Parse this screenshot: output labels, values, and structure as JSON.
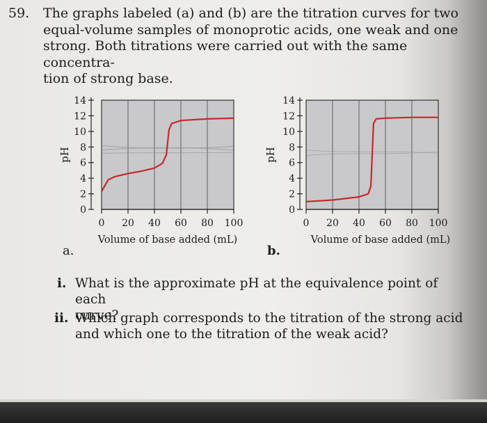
{
  "question": {
    "number": "59.",
    "lines": [
      "The graphs labeled (a) and (b) are the titration curves for two",
      "equal-volume samples of monoprotic acids, one weak and one",
      "strong. Both titrations were carried out with the same concentra-",
      "tion of strong base."
    ]
  },
  "chart_data": [
    {
      "panel": "a.",
      "type": "line",
      "ylabel": "pH",
      "xlabel": "Volume of base added (mL)",
      "xlim": [
        0,
        100
      ],
      "ylim": [
        0,
        14
      ],
      "xticks": [
        "0",
        "20",
        "40",
        "60",
        "80",
        "100"
      ],
      "yticks": [
        "0",
        "2",
        "4",
        "6",
        "8",
        "10",
        "12",
        "14"
      ],
      "grid": "vertical",
      "curve_color": "#c62828",
      "curve": [
        [
          0,
          2.3
        ],
        [
          5,
          3.8
        ],
        [
          10,
          4.2
        ],
        [
          20,
          4.6
        ],
        [
          30,
          4.9
        ],
        [
          40,
          5.3
        ],
        [
          46,
          5.9
        ],
        [
          49,
          7.0
        ],
        [
          50,
          8.6
        ],
        [
          51,
          10.2
        ],
        [
          53,
          11.0
        ],
        [
          60,
          11.4
        ],
        [
          80,
          11.6
        ],
        [
          100,
          11.7
        ]
      ]
    },
    {
      "panel": "b.",
      "type": "line",
      "ylabel": "pH",
      "xlabel": "Volume of base added (mL)",
      "xlim": [
        0,
        100
      ],
      "ylim": [
        0,
        14
      ],
      "xticks": [
        "0",
        "20",
        "40",
        "60",
        "80",
        "100"
      ],
      "yticks": [
        "0",
        "2",
        "4",
        "6",
        "8",
        "10",
        "12",
        "14"
      ],
      "grid": "vertical",
      "curve_color": "#c62828",
      "curve": [
        [
          0,
          1.0
        ],
        [
          20,
          1.2
        ],
        [
          40,
          1.6
        ],
        [
          47,
          2.0
        ],
        [
          49,
          3.0
        ],
        [
          50,
          7.0
        ],
        [
          51,
          11.0
        ],
        [
          53,
          11.6
        ],
        [
          60,
          11.7
        ],
        [
          80,
          11.8
        ],
        [
          100,
          11.8
        ]
      ]
    }
  ],
  "subquestions": [
    {
      "numeral": "i.",
      "lines": [
        "What is the approximate pH at the equivalence point of each",
        "curve?"
      ]
    },
    {
      "numeral": "ii.",
      "lines": [
        "Which graph corresponds to the titration of the strong acid",
        "and which one to the titration of the weak acid?"
      ]
    }
  ]
}
